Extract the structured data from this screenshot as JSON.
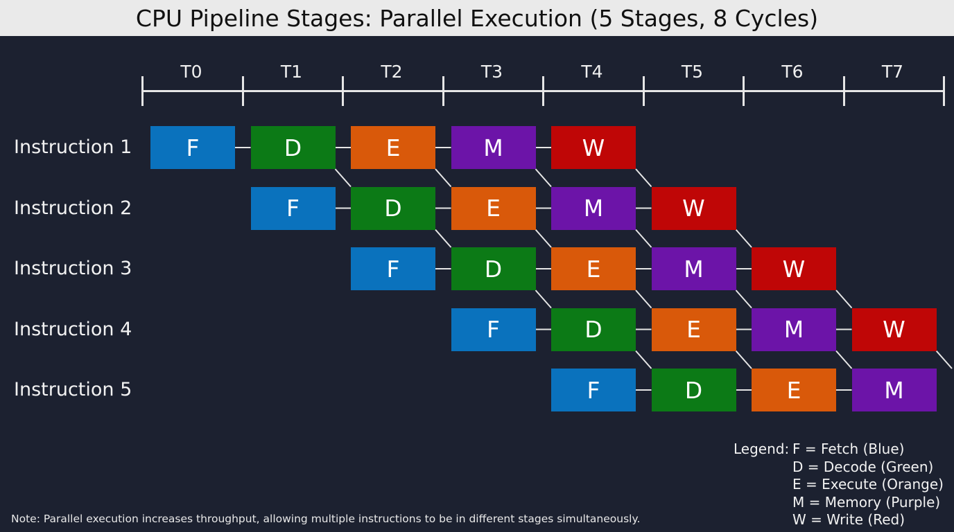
{
  "title": "CPU Pipeline Stages: Parallel Execution (5 Stages, 8 Cycles)",
  "time_axis": [
    "T0",
    "T1",
    "T2",
    "T3",
    "T4",
    "T5",
    "T6",
    "T7"
  ],
  "stage_colors": {
    "F": "#0a72bd",
    "D": "#0c7a16",
    "E": "#d9590a",
    "M": "#6c14a8",
    "W": "#bf0606"
  },
  "instructions": [
    {
      "label": "Instruction 1",
      "start": 0,
      "stages": [
        "F",
        "D",
        "E",
        "M",
        "W"
      ]
    },
    {
      "label": "Instruction 2",
      "start": 1,
      "stages": [
        "F",
        "D",
        "E",
        "M",
        "W"
      ]
    },
    {
      "label": "Instruction 3",
      "start": 2,
      "stages": [
        "F",
        "D",
        "E",
        "M",
        "W"
      ]
    },
    {
      "label": "Instruction 4",
      "start": 3,
      "stages": [
        "F",
        "D",
        "E",
        "M",
        "W"
      ]
    },
    {
      "label": "Instruction 5",
      "start": 4,
      "stages": [
        "F",
        "D",
        "E",
        "M"
      ]
    }
  ],
  "legend": {
    "prefix": "Legend:",
    "items": [
      "F = Fetch (Blue)",
      "D = Decode (Green)",
      "E = Execute (Orange)",
      "M = Memory (Purple)",
      "W = Write (Red)"
    ]
  },
  "note": "Note: Parallel execution increases throughput, allowing multiple instructions to be in different stages simultaneously.",
  "chart_data": {
    "type": "table",
    "title": "CPU Pipeline Stages: Parallel Execution (5 Stages, 8 Cycles)",
    "columns": [
      "T0",
      "T1",
      "T2",
      "T3",
      "T4",
      "T5",
      "T6",
      "T7"
    ],
    "rows": [
      {
        "name": "Instruction 1",
        "values": [
          "F",
          "D",
          "E",
          "M",
          "W",
          "",
          "",
          ""
        ]
      },
      {
        "name": "Instruction 2",
        "values": [
          "",
          "F",
          "D",
          "E",
          "M",
          "W",
          "",
          ""
        ]
      },
      {
        "name": "Instruction 3",
        "values": [
          "",
          "",
          "F",
          "D",
          "E",
          "M",
          "W",
          ""
        ]
      },
      {
        "name": "Instruction 4",
        "values": [
          "",
          "",
          "",
          "F",
          "D",
          "E",
          "M",
          "W"
        ]
      },
      {
        "name": "Instruction 5",
        "values": [
          "",
          "",
          "",
          "",
          "F",
          "D",
          "E",
          "M"
        ]
      }
    ],
    "legend": [
      "F = Fetch (Blue)",
      "D = Decode (Green)",
      "E = Execute (Orange)",
      "M = Memory (Purple)",
      "W = Write (Red)"
    ]
  }
}
